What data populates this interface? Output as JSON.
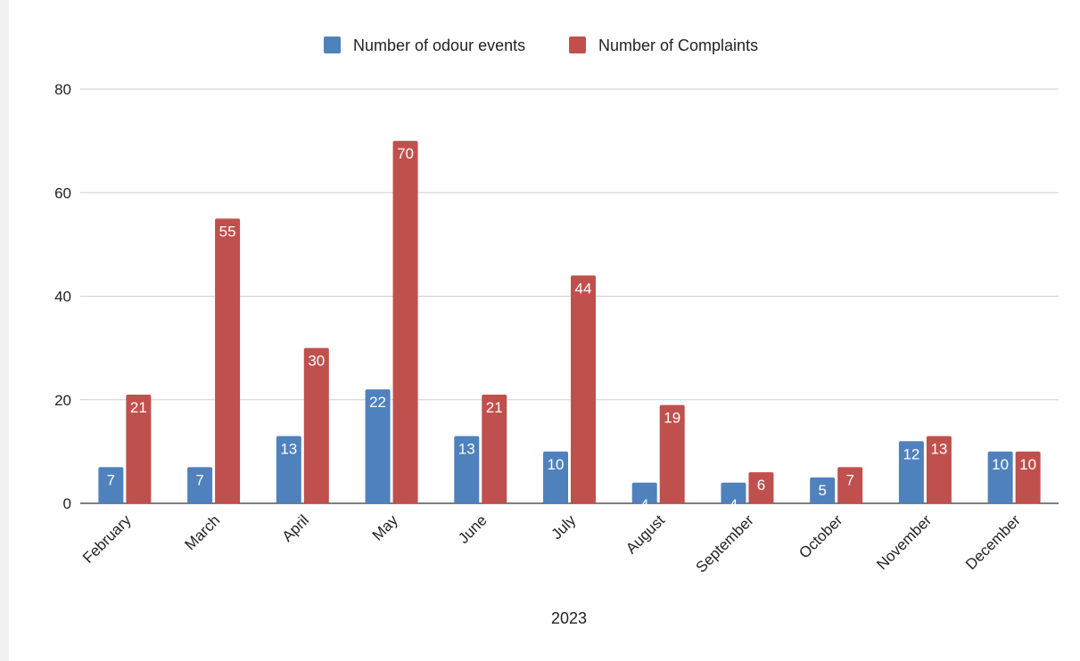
{
  "chart_data": {
    "type": "bar",
    "title": "",
    "xlabel": "2023",
    "ylabel": "",
    "ylim": [
      0,
      80
    ],
    "yticks": [
      0,
      20,
      40,
      60,
      80
    ],
    "grid": true,
    "legend_position": "top",
    "categories": [
      "February",
      "March",
      "April",
      "May",
      "June",
      "July",
      "August",
      "September",
      "October",
      "November",
      "December"
    ],
    "series": [
      {
        "name": "Number of odour events",
        "color": "#4f81bd",
        "values": [
          7,
          7,
          13,
          22,
          13,
          10,
          4,
          4,
          5,
          12,
          10
        ]
      },
      {
        "name": "Number of Complaints",
        "color": "#c0504d",
        "values": [
          21,
          55,
          30,
          70,
          21,
          44,
          19,
          6,
          7,
          13,
          10
        ]
      }
    ]
  }
}
